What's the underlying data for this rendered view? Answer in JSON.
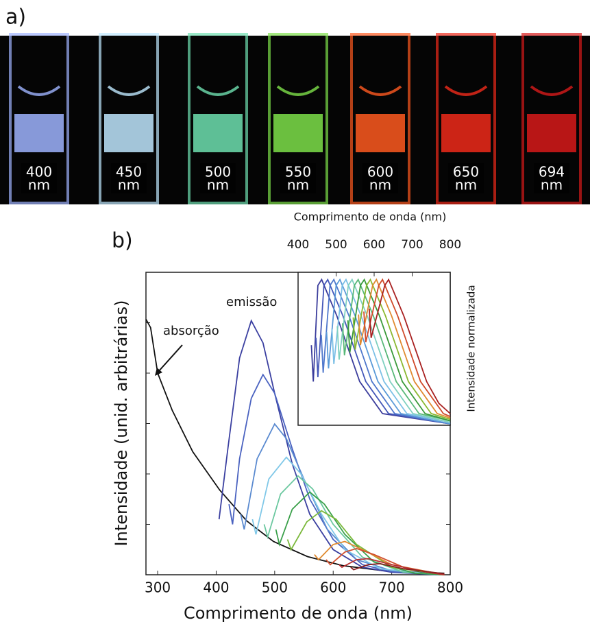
{
  "panel_a": {
    "label": "a)",
    "cuvettes": [
      {
        "wavelength": "400",
        "unit": "nm",
        "color": "#9fb4ff"
      },
      {
        "wavelength": "450",
        "unit": "nm",
        "color": "#bfe8ff"
      },
      {
        "wavelength": "500",
        "unit": "nm",
        "color": "#6fe0b0"
      },
      {
        "wavelength": "550",
        "unit": "nm",
        "color": "#7ee04a"
      },
      {
        "wavelength": "600",
        "unit": "nm",
        "color": "#ff5a20"
      },
      {
        "wavelength": "650",
        "unit": "nm",
        "color": "#f02a1a"
      },
      {
        "wavelength": "694",
        "unit": "nm",
        "color": "#d81a1a"
      }
    ]
  },
  "chart_data": [
    {
      "type": "line",
      "panel_label": "b)",
      "x_label": "Comprimento de onda (nm)",
      "y_label": "Intensidade (unid. arbitrárias)",
      "annotations": [
        "emissão",
        "absorção"
      ],
      "xlim": [
        280,
        800
      ],
      "ylim": [
        0,
        6
      ],
      "xticks": [
        300,
        400,
        500,
        600,
        700,
        800
      ],
      "yticks": [
        1,
        2,
        3,
        4,
        5
      ],
      "series": [
        {
          "color": "#111111",
          "x": [
            280,
            288,
            300,
            325,
            360,
            406,
            452,
            498,
            556,
            617,
            686,
            790
          ],
          "values": [
            5.07,
            4.9,
            4.0,
            3.26,
            2.44,
            1.68,
            1.07,
            0.66,
            0.36,
            0.18,
            0.08,
            0.03
          ]
        },
        {
          "color": "#3a3fa0",
          "x": [
            405,
            420,
            440,
            460,
            480,
            500,
            530,
            560,
            600,
            650,
            700,
            780
          ],
          "values": [
            1.1,
            2.5,
            4.3,
            5.04,
            4.6,
            3.6,
            2.2,
            1.2,
            0.5,
            0.15,
            0.05,
            0
          ]
        },
        {
          "color": "#4a62c0",
          "x": [
            422,
            428,
            440,
            460,
            480,
            500,
            530,
            560,
            600,
            650,
            700,
            780
          ],
          "values": [
            1.4,
            1.0,
            2.3,
            3.5,
            3.97,
            3.6,
            2.5,
            1.5,
            0.7,
            0.2,
            0.06,
            0
          ]
        },
        {
          "color": "#5a8ad0",
          "x": [
            442,
            448,
            470,
            500,
            520,
            550,
            590,
            640,
            700,
            780
          ],
          "values": [
            1.2,
            0.9,
            2.3,
            2.99,
            2.7,
            1.9,
            0.9,
            0.3,
            0.08,
            0
          ]
        },
        {
          "color": "#80c8e8",
          "x": [
            462,
            468,
            490,
            520,
            545,
            580,
            620,
            680,
            780
          ],
          "values": [
            1.1,
            0.8,
            1.9,
            2.33,
            2.0,
            1.2,
            0.5,
            0.12,
            0
          ]
        },
        {
          "color": "#6cc8a0",
          "x": [
            482,
            488,
            510,
            540,
            565,
            600,
            650,
            720,
            790
          ],
          "values": [
            1.0,
            0.75,
            1.6,
            1.96,
            1.7,
            1.0,
            0.35,
            0.05,
            0
          ]
        },
        {
          "color": "#3aa04a",
          "x": [
            502,
            508,
            530,
            560,
            585,
            620,
            670,
            740,
            790
          ],
          "values": [
            0.9,
            0.6,
            1.3,
            1.64,
            1.4,
            0.8,
            0.25,
            0.03,
            0
          ]
        },
        {
          "color": "#7ab83a",
          "x": [
            522,
            528,
            555,
            580,
            605,
            640,
            700,
            790
          ],
          "values": [
            0.7,
            0.5,
            1.05,
            1.27,
            1.1,
            0.6,
            0.15,
            0
          ]
        },
        {
          "color": "#e08a30",
          "x": [
            568,
            575,
            600,
            620,
            650,
            700,
            790
          ],
          "values": [
            0.4,
            0.3,
            0.6,
            0.66,
            0.5,
            0.2,
            0
          ]
        },
        {
          "color": "#d05030",
          "x": [
            588,
            595,
            620,
            640,
            670,
            720,
            790
          ],
          "values": [
            0.3,
            0.2,
            0.45,
            0.52,
            0.4,
            0.15,
            0
          ]
        },
        {
          "color": "#b83030",
          "x": [
            610,
            615,
            640,
            660,
            700,
            760,
            790
          ],
          "values": [
            0.2,
            0.15,
            0.3,
            0.32,
            0.2,
            0.05,
            0
          ]
        },
        {
          "color": "#8a2020",
          "x": [
            630,
            635,
            660,
            680,
            720,
            790
          ],
          "values": [
            0.15,
            0.1,
            0.2,
            0.22,
            0.12,
            0.02
          ]
        }
      ]
    },
    {
      "type": "line",
      "x_label": "Comprimento de onda (nm)",
      "y_label": "Intensidade normalizada",
      "xlim": [
        400,
        800
      ],
      "ylim": [
        0,
        1.05
      ],
      "xticks": [
        400,
        500,
        600,
        700,
        800
      ],
      "series": [
        {
          "color": "#3b3d9c",
          "x": [
            435,
            440,
            452,
            462,
            502,
            562,
            622,
            800
          ],
          "values": [
            0.55,
            0.3,
            0.96,
            1,
            0.75,
            0.3,
            0.08,
            0.01
          ]
        },
        {
          "color": "#4457b8",
          "x": [
            447,
            452,
            468,
            478,
            518,
            578,
            638,
            800
          ],
          "values": [
            0.6,
            0.33,
            0.96,
            1,
            0.75,
            0.3,
            0.08,
            0.01
          ]
        },
        {
          "color": "#4f78cc",
          "x": [
            461,
            466,
            484,
            494,
            534,
            594,
            654,
            800
          ],
          "values": [
            0.62,
            0.36,
            0.96,
            1,
            0.75,
            0.3,
            0.08,
            0.01
          ]
        },
        {
          "color": "#5a9ad8",
          "x": [
            475,
            480,
            500,
            510,
            550,
            610,
            670,
            800
          ],
          "values": [
            0.64,
            0.39,
            0.96,
            1,
            0.75,
            0.3,
            0.08,
            0.01
          ]
        },
        {
          "color": "#7cc0e6",
          "x": [
            489,
            494,
            516,
            526,
            566,
            626,
            686,
            800
          ],
          "values": [
            0.66,
            0.42,
            0.96,
            1,
            0.75,
            0.3,
            0.08,
            0.02
          ]
        },
        {
          "color": "#7fd0c0",
          "x": [
            503,
            508,
            532,
            542,
            582,
            642,
            702,
            800
          ],
          "values": [
            0.68,
            0.45,
            0.96,
            1,
            0.75,
            0.3,
            0.08,
            0.02
          ]
        },
        {
          "color": "#58b878",
          "x": [
            517,
            522,
            548,
            558,
            598,
            658,
            718,
            800
          ],
          "values": [
            0.7,
            0.48,
            0.96,
            1,
            0.75,
            0.3,
            0.08,
            0.03
          ]
        },
        {
          "color": "#3a9a3a",
          "x": [
            531,
            536,
            564,
            574,
            614,
            674,
            734,
            800
          ],
          "values": [
            0.72,
            0.5,
            0.96,
            1,
            0.75,
            0.3,
            0.08,
            0.03
          ]
        },
        {
          "color": "#8ab830",
          "x": [
            545,
            550,
            580,
            590,
            630,
            690,
            750,
            800
          ],
          "values": [
            0.74,
            0.52,
            0.96,
            1,
            0.75,
            0.3,
            0.08,
            0.04
          ]
        },
        {
          "color": "#e08a30",
          "x": [
            559,
            564,
            596,
            606,
            646,
            706,
            766,
            800
          ],
          "values": [
            0.76,
            0.55,
            0.96,
            1,
            0.75,
            0.3,
            0.08,
            0.05
          ]
        },
        {
          "color": "#d04a2a",
          "x": [
            573,
            578,
            612,
            622,
            662,
            722,
            782,
            800
          ],
          "values": [
            0.78,
            0.57,
            0.96,
            1,
            0.75,
            0.3,
            0.08,
            0.06
          ]
        },
        {
          "color": "#a82020",
          "x": [
            587,
            592,
            628,
            638,
            678,
            738,
            770,
            800
          ],
          "values": [
            0.8,
            0.6,
            0.96,
            1,
            0.75,
            0.3,
            0.15,
            0.08
          ]
        }
      ]
    }
  ]
}
